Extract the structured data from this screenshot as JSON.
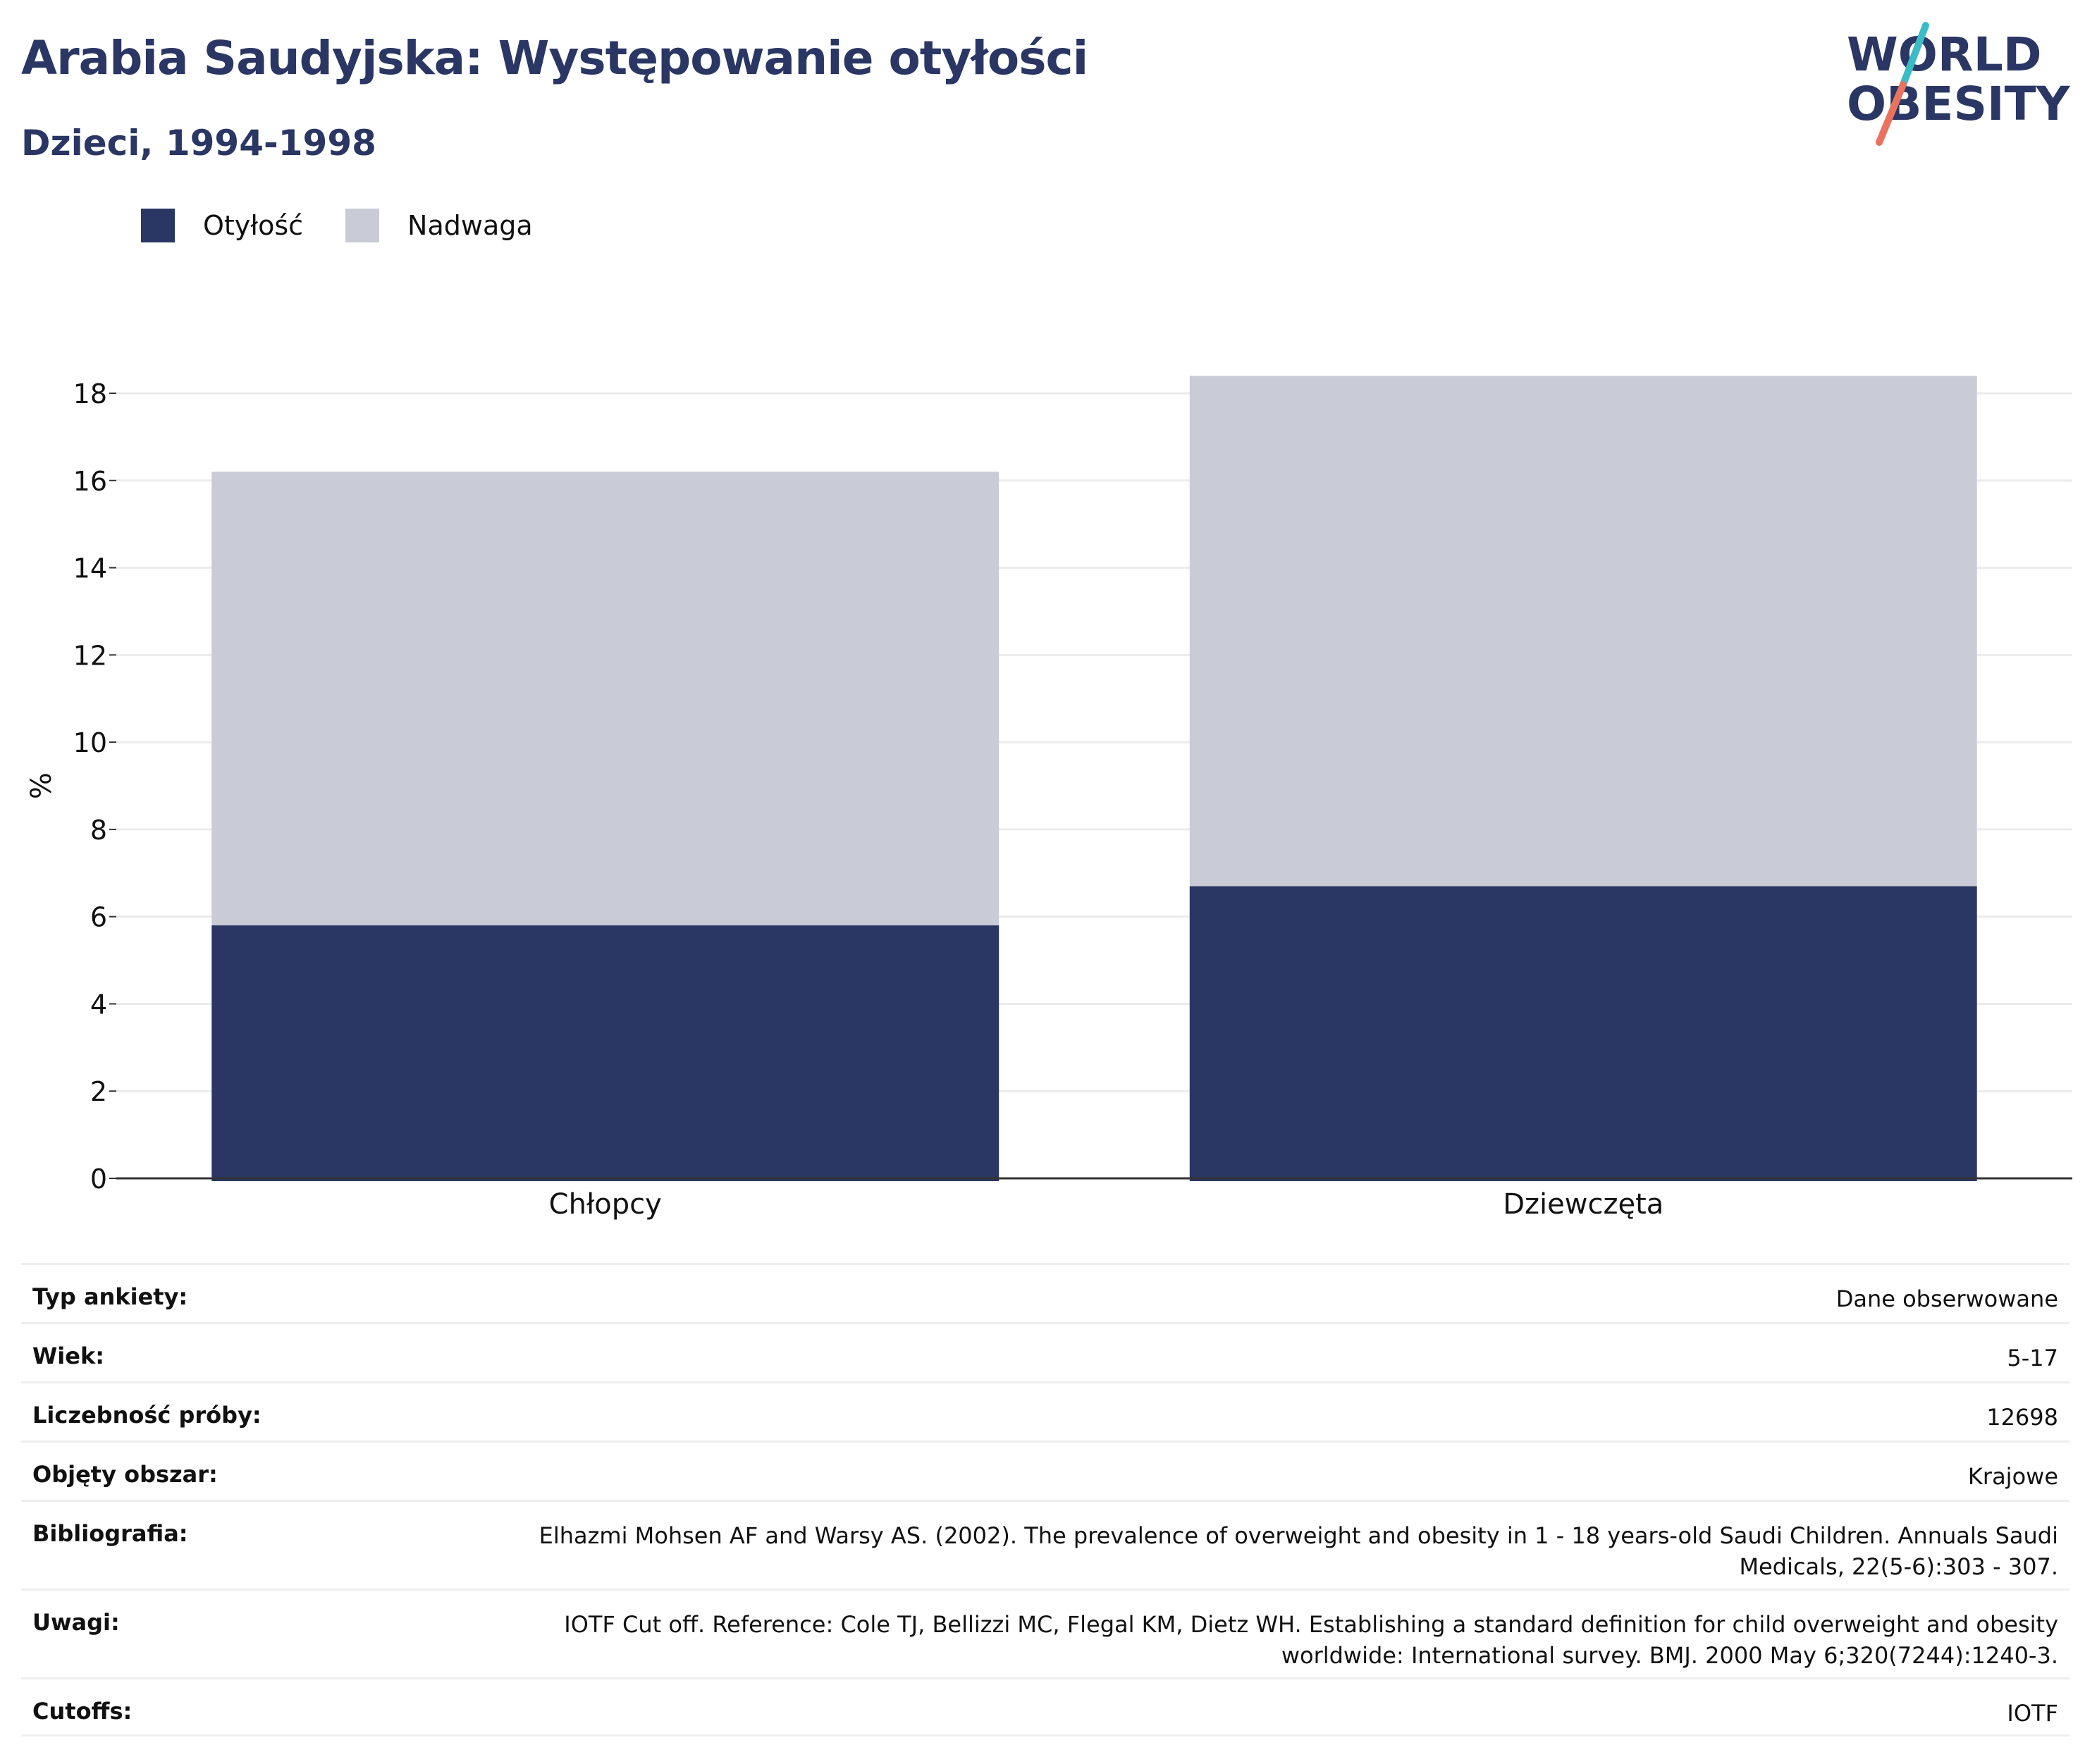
{
  "header": {
    "title": "Arabia Saudyjska: Występowanie otyłości",
    "subtitle": "Dzieci, 1994-1998",
    "logo_line1": "WORLD",
    "logo_line2": "OBESITY"
  },
  "legend": [
    {
      "label": "Otyłość",
      "color": "#2a3663"
    },
    {
      "label": "Nadwaga",
      "color": "#c9cbd6"
    }
  ],
  "chart_data": {
    "type": "bar",
    "stacked": true,
    "categories": [
      "Chłopcy",
      "Dziewczęta"
    ],
    "series": [
      {
        "name": "Otyłość",
        "values": [
          5.8,
          6.7
        ],
        "color": "#2a3663"
      },
      {
        "name": "Nadwaga",
        "values": [
          10.4,
          11.7
        ],
        "color": "#c9cbd6"
      }
    ],
    "ylabel": "%",
    "ylim": [
      0,
      18
    ],
    "yticks": [
      0,
      2,
      4,
      6,
      8,
      10,
      12,
      14,
      16,
      18
    ],
    "grid": true,
    "legend_position": "top-left"
  },
  "info": [
    {
      "label": "Typ ankiety:",
      "value": "Dane obserwowane"
    },
    {
      "label": "Wiek:",
      "value": "5-17"
    },
    {
      "label": "Liczebność próby:",
      "value": "12698"
    },
    {
      "label": "Objęty obszar:",
      "value": "Krajowe"
    },
    {
      "label": "Bibliografia:",
      "value": "Elhazmi Mohsen AF and Warsy AS. (2002). The prevalence of overweight and obesity in 1 - 18 years-old Saudi Children. Annuals Saudi Medicals, 22(5-6):303 - 307."
    },
    {
      "label": "Uwagi:",
      "value": "IOTF Cut off. Reference: Cole TJ, Bellizzi MC, Flegal KM, Dietz WH. Establishing a standard definition for child overweight and obesity worldwide: International survey. BMJ. 2000 May 6;320(7244):1240-3."
    },
    {
      "label": "Cutoffs:",
      "value": "IOTF"
    }
  ]
}
